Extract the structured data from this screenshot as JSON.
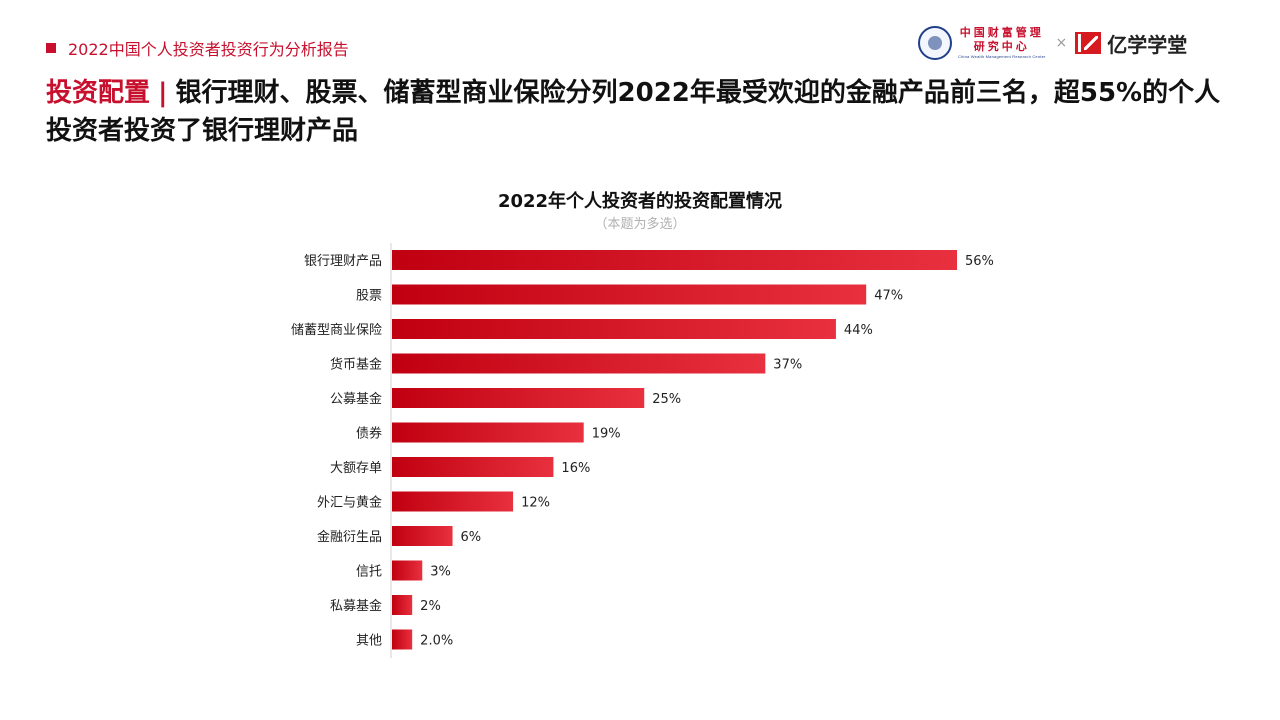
{
  "report_header": "2022中国个人投资者投资行为分析报告",
  "logos": {
    "cwm_line1": "中国财富管理",
    "cwm_line2": "研究中心",
    "cwm_line3": "China Wealth Management Research Center",
    "times": "×",
    "yzx_name": "亿学学堂"
  },
  "headline": {
    "accent": "投资配置",
    "separator": "|",
    "text": "银行理财、股票、储蓄型商业保险分列2022年最受欢迎的金融产品前三名，超55%的个人投资者投资了银行理财产品"
  },
  "colors": {
    "accent": "#c8102e",
    "bar_dark": "#c00010",
    "bar_light": "#e8303e"
  },
  "chart_data": {
    "type": "bar",
    "orientation": "horizontal",
    "title": "2022年个人投资者的投资配置情况",
    "subtitle": "（本题为多选）",
    "categories": [
      "银行理财产品",
      "股票",
      "储蓄型商业保险",
      "货币基金",
      "公募基金",
      "债券",
      "大额存单",
      "外汇与黄金",
      "金融衍生品",
      "信托",
      "私募基金",
      "其他"
    ],
    "values": [
      56,
      47,
      44,
      37,
      25,
      19,
      16,
      12,
      6,
      3,
      2,
      2.0
    ],
    "value_labels": [
      "56%",
      "47%",
      "44%",
      "37%",
      "25%",
      "19%",
      "16%",
      "12%",
      "6%",
      "3%",
      "2%",
      "2.0%"
    ],
    "unit": "%",
    "xlim": [
      0,
      56
    ],
    "grid": false,
    "legend": "none"
  }
}
